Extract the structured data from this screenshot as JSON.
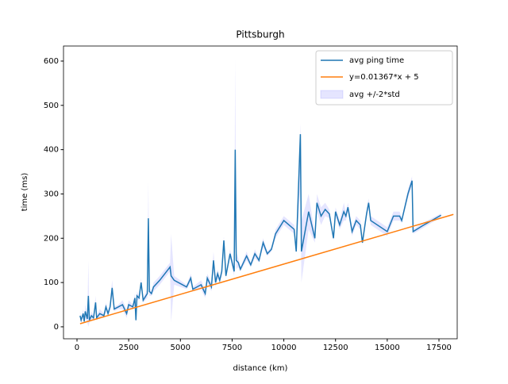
{
  "chart_data": {
    "type": "line",
    "title": "Pittsburgh",
    "x_label": "distance (km)",
    "y_label": "time (ms)",
    "x": [
      150,
      200,
      300,
      350,
      400,
      500,
      550,
      600,
      700,
      800,
      900,
      950,
      1100,
      1300,
      1400,
      1500,
      1600,
      1700,
      1800,
      2000,
      2200,
      2400,
      2500,
      2700,
      2800,
      2850,
      2900,
      3000,
      3100,
      3200,
      3400,
      3450,
      3500,
      3600,
      3700,
      4000,
      4500,
      4550,
      4700,
      5300,
      5500,
      5600,
      6000,
      6200,
      6300,
      6500,
      6600,
      6700,
      6800,
      6900,
      7000,
      7100,
      7200,
      7400,
      7600,
      7650,
      7700,
      7800,
      7900,
      8200,
      8400,
      8600,
      8800,
      9000,
      9200,
      9400,
      9600,
      10000,
      10500,
      10600,
      10800,
      10850,
      11200,
      11500,
      11600,
      11800,
      12000,
      12200,
      12400,
      12500,
      12700,
      12900,
      13000,
      13100,
      13300,
      13500,
      13700,
      13800,
      14000,
      14100,
      14200,
      15000,
      15300,
      15600,
      15700,
      16000,
      16200,
      16250,
      16700,
      17600
    ],
    "series": [
      {
        "name": "avg ping time",
        "color": "#1f77b4",
        "values": [
          25,
          15,
          30,
          12,
          35,
          18,
          70,
          15,
          25,
          20,
          55,
          20,
          30,
          25,
          45,
          30,
          45,
          88,
          40,
          45,
          50,
          30,
          50,
          45,
          65,
          15,
          70,
          65,
          100,
          60,
          75,
          245,
          80,
          75,
          90,
          105,
          135,
          115,
          105,
          90,
          110,
          85,
          95,
          75,
          110,
          90,
          150,
          100,
          120,
          105,
          125,
          195,
          115,
          165,
          125,
          400,
          150,
          145,
          130,
          160,
          140,
          165,
          150,
          190,
          165,
          175,
          210,
          240,
          220,
          170,
          435,
          170,
          260,
          200,
          280,
          250,
          265,
          255,
          200,
          260,
          230,
          260,
          250,
          270,
          215,
          240,
          230,
          190,
          255,
          280,
          240,
          215,
          250,
          250,
          240,
          300,
          330,
          215,
          228,
          252
        ]
      }
    ],
    "band": {
      "name": "avg +/-2*std",
      "color": "#0000ff",
      "lower": [
        15,
        10,
        20,
        8,
        20,
        10,
        0,
        10,
        15,
        15,
        40,
        15,
        20,
        20,
        35,
        25,
        35,
        70,
        35,
        40,
        40,
        20,
        40,
        40,
        55,
        10,
        60,
        60,
        90,
        55,
        65,
        160,
        70,
        70,
        80,
        95,
        125,
        10,
        95,
        85,
        100,
        80,
        85,
        65,
        100,
        80,
        130,
        90,
        110,
        100,
        115,
        185,
        110,
        155,
        115,
        200,
        130,
        135,
        125,
        150,
        135,
        155,
        145,
        180,
        160,
        170,
        200,
        230,
        210,
        165,
        320,
        100,
        220,
        190,
        260,
        230,
        250,
        245,
        195,
        250,
        220,
        240,
        240,
        260,
        205,
        230,
        220,
        185,
        245,
        270,
        230,
        205,
        240,
        240,
        235,
        290,
        320,
        210,
        222,
        248
      ],
      "upper": [
        35,
        20,
        40,
        16,
        50,
        26,
        150,
        20,
        35,
        25,
        70,
        25,
        40,
        30,
        55,
        35,
        55,
        106,
        45,
        50,
        60,
        40,
        60,
        50,
        75,
        20,
        80,
        70,
        110,
        65,
        85,
        330,
        90,
        80,
        100,
        115,
        145,
        210,
        115,
        95,
        120,
        90,
        105,
        85,
        120,
        100,
        170,
        110,
        130,
        110,
        135,
        205,
        120,
        175,
        135,
        605,
        170,
        155,
        135,
        170,
        145,
        175,
        155,
        200,
        170,
        180,
        220,
        250,
        230,
        175,
        460,
        240,
        300,
        210,
        300,
        270,
        280,
        265,
        205,
        270,
        240,
        280,
        260,
        280,
        225,
        250,
        240,
        195,
        265,
        290,
        250,
        225,
        260,
        260,
        245,
        310,
        340,
        220,
        234,
        256
      ]
    },
    "fit": {
      "name": "y=0.01367*x + 5",
      "color": "#ff7f0e",
      "x": [
        150,
        18200
      ],
      "values": [
        7.05,
        253.79
      ]
    },
    "xlim": [
      -652,
      18382
    ],
    "ylim": [
      -27,
      634
    ],
    "xticks": [
      0,
      2500,
      5000,
      7500,
      10000,
      12500,
      15000,
      17500
    ],
    "yticks": [
      0,
      100,
      200,
      300,
      400,
      500,
      600
    ]
  }
}
